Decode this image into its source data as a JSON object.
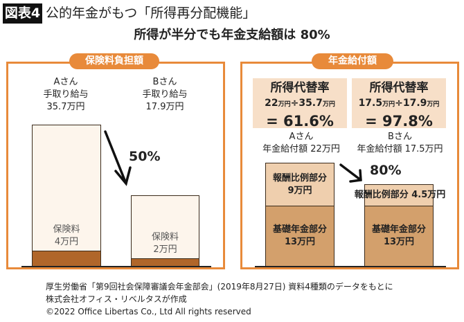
{
  "header": {
    "badge": "図表4",
    "title": "公的年金がもつ「所得再分配機能」",
    "subtitle": "所得が半分でも年金支給額は 80%"
  },
  "left_panel": {
    "label": "保険料負担額",
    "a": {
      "name": "Aさん",
      "caption": "手取り給与",
      "salary": "35.7万円",
      "premium_label": "保険料",
      "premium": "4万円"
    },
    "b": {
      "name": "Bさん",
      "caption": "手取り給与",
      "salary": "17.9万円",
      "premium_label": "保険料",
      "premium": "2万円"
    },
    "ratio": "50%"
  },
  "right_panel": {
    "label": "年金給付額",
    "a": {
      "box_title": "所得代替率",
      "formula_num": "22",
      "formula_den": "35.7",
      "unit": "万円",
      "div": "÷",
      "result": "= 61.6%",
      "name": "Aさん",
      "benefit": "年金給付額 22万円",
      "earnings_part": "報酬比例部分",
      "earnings_value": "9万円",
      "basic_part": "基礎年金部分",
      "basic_value": "13万円"
    },
    "b": {
      "box_title": "所得代替率",
      "formula_num": "17.5",
      "formula_den": "17.9",
      "unit": "万円",
      "div": "÷",
      "result": "= 97.8%",
      "name": "Bさん",
      "benefit": "年金給付額 17.5万円",
      "earnings_part": "報酬比例部分 4.5万円",
      "basic_part": "基礎年金部分",
      "basic_value": "13万円"
    },
    "ratio": "80%"
  },
  "footer": {
    "source": "厚生労働省「第9回社会保障審議会年金部会」(2019年8月27日) 資料4種類のデータをもとに",
    "author": "株式会社オフィス・リベルタスが作成",
    "copyright": "©2022 Office Libertas Co., Ltd All rights reserved"
  },
  "colors": {
    "accent": "#e88a3a",
    "premium": "#b0662a",
    "earnings": "#efcfae",
    "basic": "#d3a06c",
    "box": "#f7dfc8"
  }
}
